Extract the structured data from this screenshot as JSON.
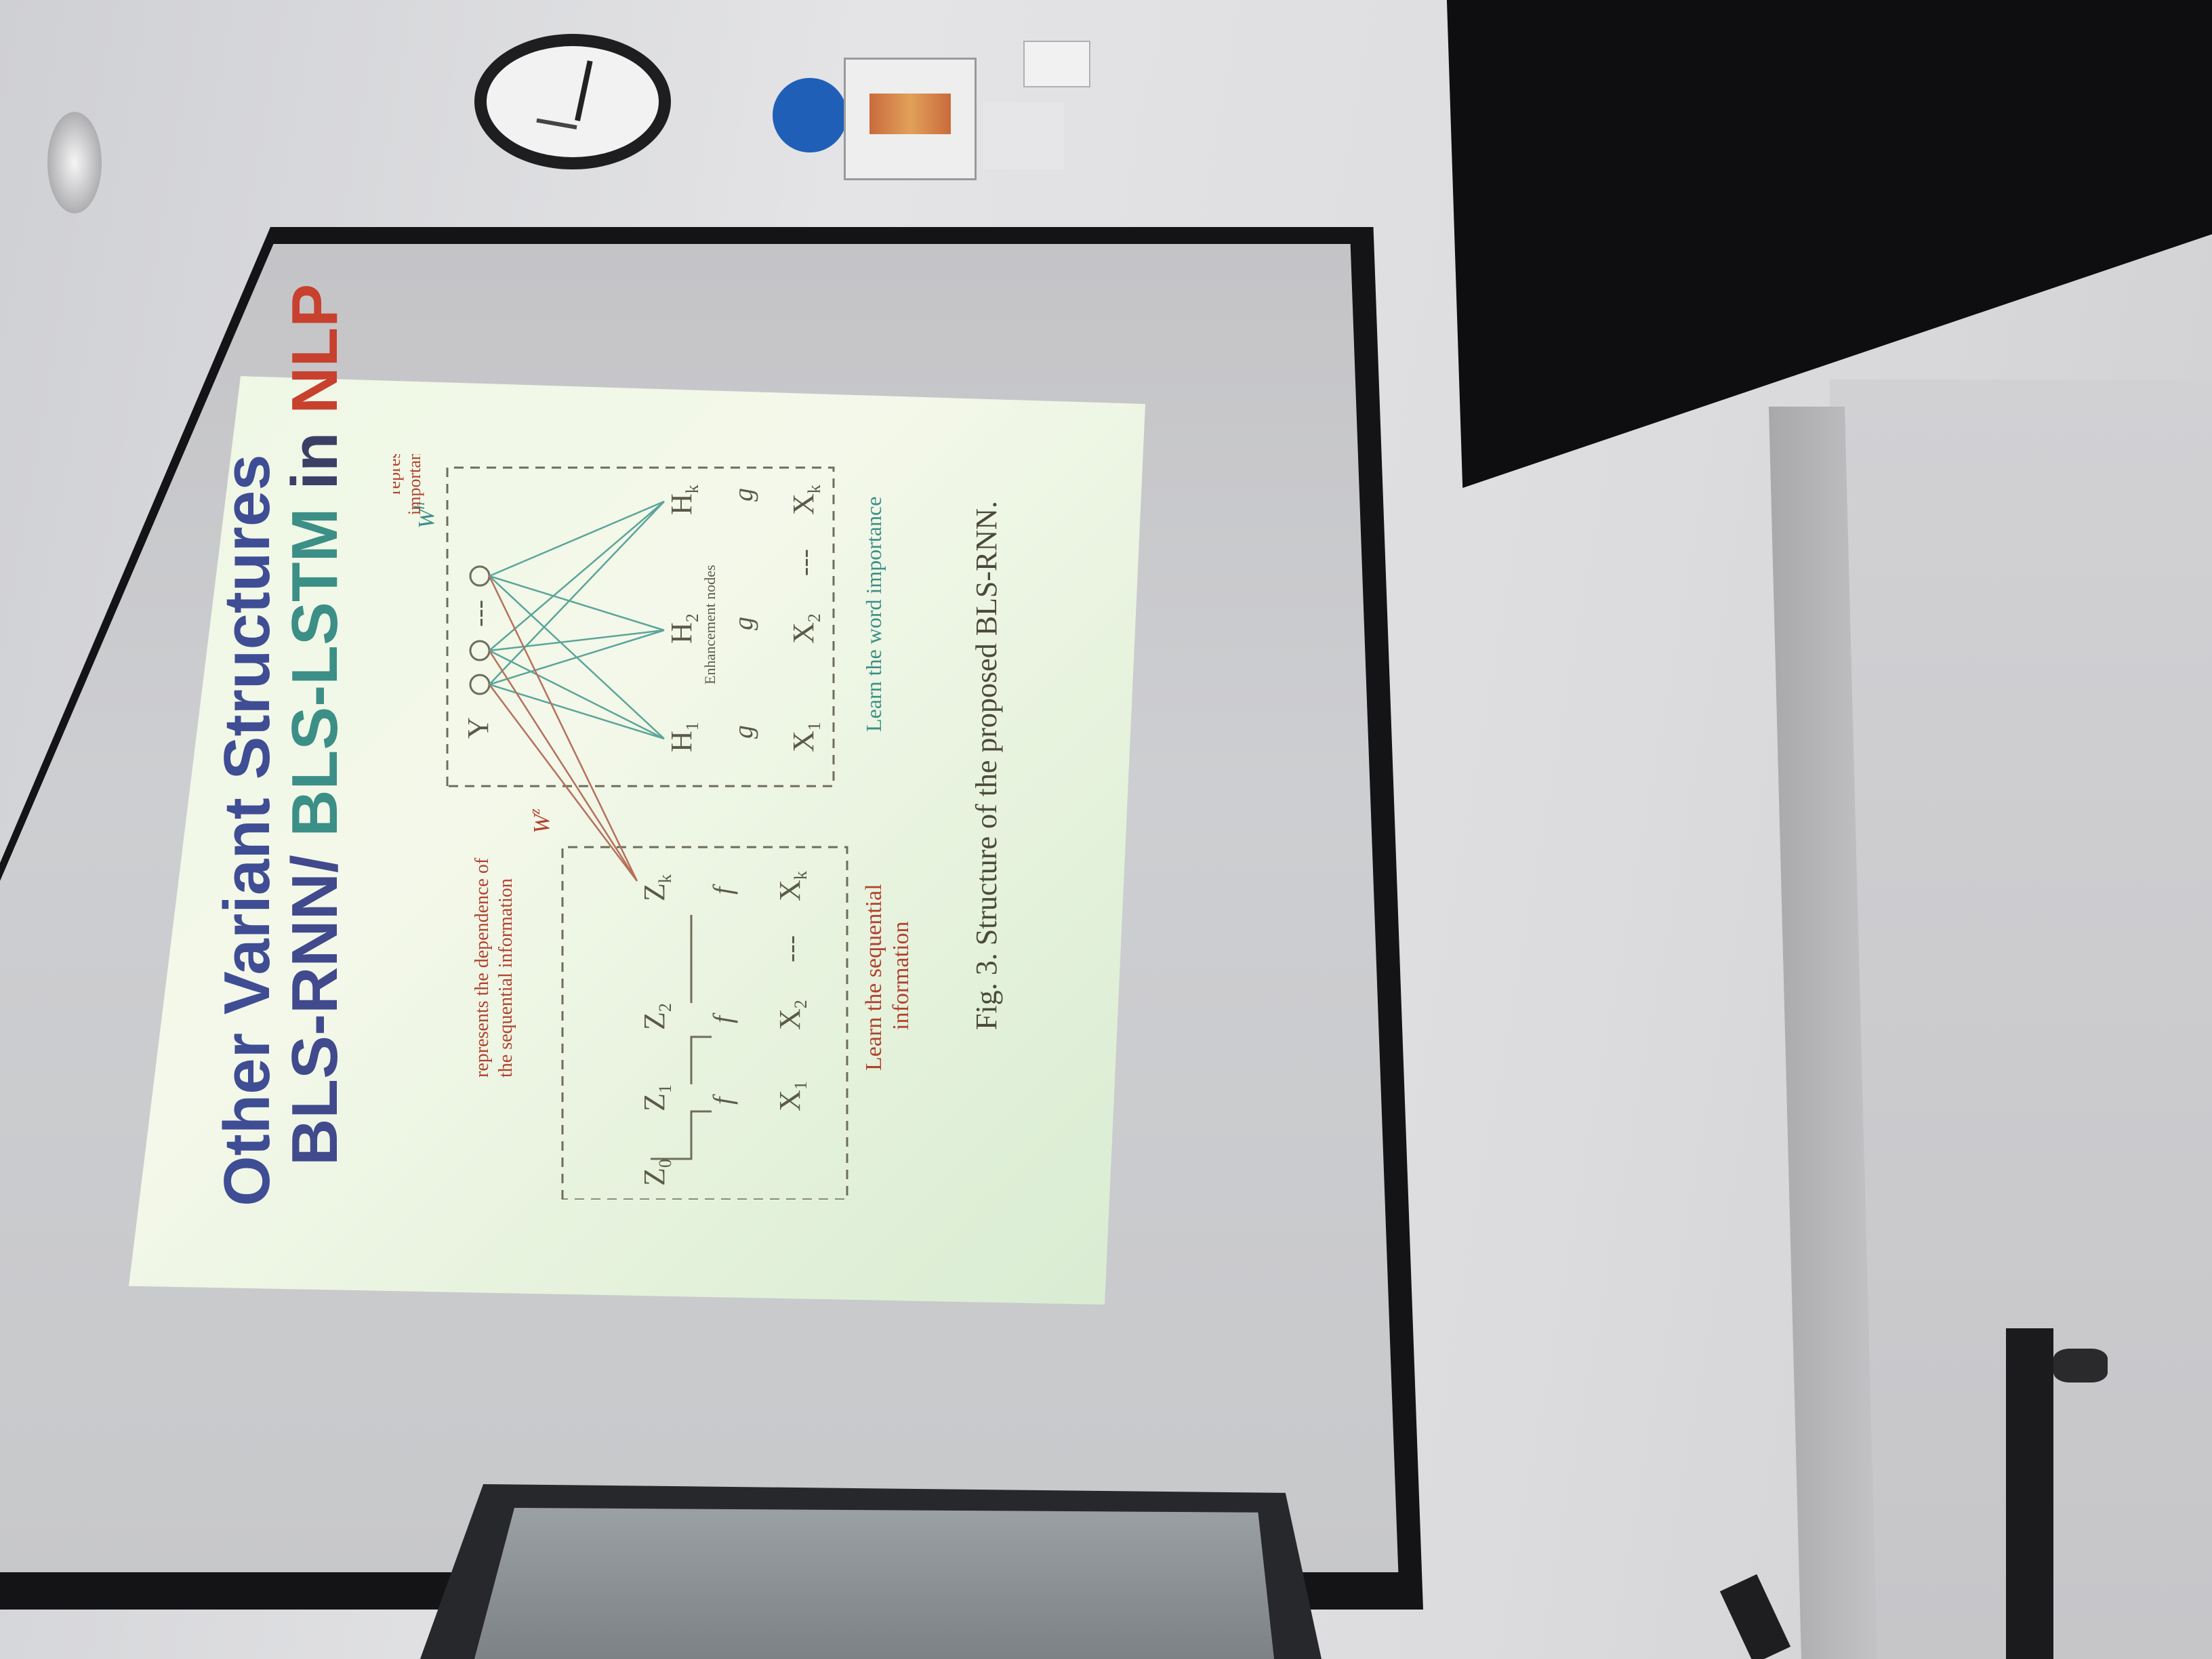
{
  "slide": {
    "title_line1": "Other Variant Structures",
    "title_line2_part1": "BLS-RNN/ ",
    "title_line2_part2": "BLS-LSTM",
    "title_line2_part3": " in ",
    "title_line2_part4": "NLP",
    "caption": "Fig. 3.   Structure of the proposed BLS-RNN."
  },
  "diagram": {
    "annotation_dependence_1": "represents the dependence of",
    "annotation_dependence_2": "the sequential information",
    "annotation_importance_1": "represents the",
    "annotation_importance_2": "importance of the word",
    "learn_sequential_1": "Learn the sequential",
    "learn_sequential_2": "information",
    "learn_word_importance": "Learn the word importance",
    "enhancement_nodes": "Enhancement nodes",
    "weight_z": "W",
    "weight_h": "W",
    "output": "Y",
    "z0": "Z",
    "z1": "Z",
    "z2": "Z",
    "zk": "Z",
    "x1": "X",
    "x2": "X",
    "xk": "X",
    "h1": "H",
    "h2": "H",
    "hk": "H",
    "func_f": "f",
    "func_g": "g",
    "sub_0": "0",
    "sub_1": "1",
    "sub_2": "2",
    "sub_k": "k",
    "sup_z": "z",
    "sup_h": "h",
    "ellipsis": "...",
    "dash": "---"
  },
  "colors": {
    "title_blue": "#3f4d94",
    "title_teal": "#3b8f86",
    "title_red": "#c8402e",
    "annotation_red": "#b0412d",
    "line_teal": "#5aa59a",
    "line_brown": "#b5705a"
  },
  "objects": {
    "wall_clock": "wall-clock",
    "projector_screen": "projector-screen",
    "monitor": "monitor"
  }
}
